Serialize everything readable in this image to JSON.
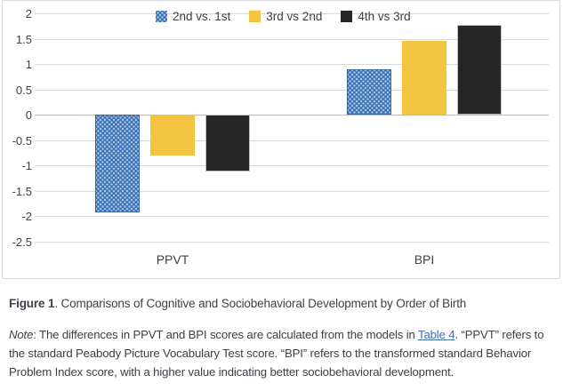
{
  "figure": {
    "caption_label": "Figure 1",
    "caption_text": ". Comparisons of Cognitive and Sociobehavioral Development by Order of Birth",
    "note_label": "Note",
    "note_before_link": ": The differences in PPVT and BPI scores are calculated from the models in ",
    "note_link": "Table 4",
    "note_after_link": ". “PPVT” refers to the standard Peabody Picture Vocabulary Test score. “BPI” refers to the transformed standard Behavior Problem Index score, with a higher value indicating better sociobehavioral development."
  },
  "chart_data": {
    "type": "bar",
    "title": "",
    "xlabel": "",
    "ylabel": "",
    "categories": [
      "PPVT",
      "BPI"
    ],
    "series": [
      {
        "name": "2nd vs. 1st",
        "values": [
          -1.93,
          0.9
        ],
        "color": "#3e74b6",
        "pattern": "dots"
      },
      {
        "name": "3rd vs 2nd",
        "values": [
          -0.8,
          1.45
        ],
        "color": "#f3c43f",
        "pattern": "solid"
      },
      {
        "name": "4th vs 3rd",
        "values": [
          -1.13,
          1.77
        ],
        "color": "#262626",
        "pattern": "solid-dark"
      }
    ],
    "ylim": [
      -2.5,
      2
    ],
    "ytick_step": 0.5,
    "yticks": [
      2,
      1.5,
      1,
      0.5,
      0,
      -0.5,
      -1,
      -1.5,
      -2,
      -2.5
    ],
    "grid": true,
    "legend_position": "top-center",
    "colors": {
      "gridline": "#d9d9d9",
      "zero_line": "#bdbdbd",
      "axis_text": "#404040",
      "link": "#3b6fba"
    }
  }
}
